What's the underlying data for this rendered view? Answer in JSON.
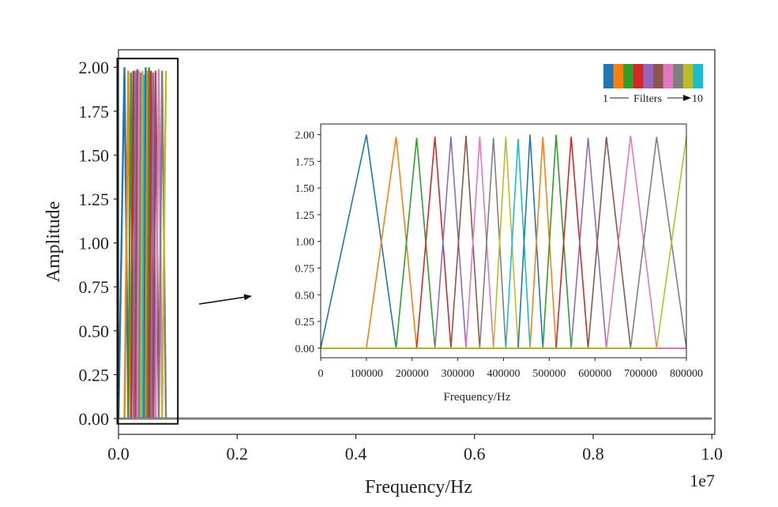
{
  "chart_data": [
    {
      "type": "line",
      "xlabel": "Frequency/Hz",
      "ylabel": "Amplitude",
      "x_offset_label": "1e7",
      "xlim": [
        -5e-05,
        1.005
      ],
      "ylim": [
        -0.09,
        2.1
      ],
      "xticks": [
        0.0,
        0.2,
        0.4,
        0.6,
        0.8,
        1.0
      ],
      "xtick_labels": [
        "0.0",
        "0.2",
        "0.4",
        "0.6",
        "0.8",
        "1.0"
      ],
      "yticks": [
        0.0,
        0.25,
        0.5,
        0.75,
        1.0,
        1.25,
        1.5,
        1.75,
        2.0
      ],
      "ytick_labels": [
        "0.00",
        "0.25",
        "0.50",
        "0.75",
        "1.00",
        "1.25",
        "1.50",
        "1.75",
        "2.00"
      ],
      "grid": false,
      "baseline": {
        "x": [
          0.0,
          1.0
        ],
        "y": [
          0.0,
          0.0
        ],
        "color": "#7f7f7f"
      },
      "filters_x": [
        0.0,
        0.01,
        0.0165,
        0.021,
        0.025,
        0.0285,
        0.0318,
        0.0348,
        0.0378,
        0.0405,
        0.0432,
        0.0458,
        0.0486,
        0.0515,
        0.0548,
        0.0585,
        0.0625,
        0.0678,
        0.0735,
        0.08
      ],
      "filters_peak": [
        2.0,
        1.98,
        1.97,
        1.98,
        1.98,
        1.99,
        1.98,
        1.97,
        1.98,
        1.96,
        2.0,
        1.98,
        2.0,
        1.98,
        1.97,
        1.98,
        1.99,
        1.98,
        1.98
      ],
      "zoom_box": {
        "x": [
          -0.002,
          0.1
        ],
        "y": [
          -0.03,
          2.05
        ]
      },
      "legend_colorbar": {
        "colors": [
          "#1f77b4",
          "#ff7f0e",
          "#2ca02c",
          "#d62728",
          "#9467bd",
          "#8c564b",
          "#e377c2",
          "#7f7f7f",
          "#bcbd22",
          "#17becf"
        ],
        "label_start": "1",
        "label_text": "Filters",
        "label_end": "10",
        "placement": "top-right"
      }
    },
    {
      "type": "line",
      "xlabel": "Frequency/Hz",
      "ylabel": "",
      "xlim": [
        0,
        800000
      ],
      "ylim": [
        -0.09,
        2.1
      ],
      "xticks": [
        0,
        100000,
        200000,
        300000,
        400000,
        500000,
        600000,
        700000,
        800000
      ],
      "xtick_labels": [
        "0",
        "100000",
        "200000",
        "300000",
        "400000",
        "500000",
        "600000",
        "700000",
        "800000"
      ],
      "yticks": [
        0.0,
        0.25,
        0.5,
        0.75,
        1.0,
        1.25,
        1.5,
        1.75,
        2.0
      ],
      "ytick_labels": [
        "0.00",
        "0.25",
        "0.50",
        "0.75",
        "1.00",
        "1.25",
        "1.50",
        "1.75",
        "2.00"
      ],
      "grid": false,
      "placement": "inset",
      "filters_x": [
        0,
        100000,
        165000,
        210000,
        250000,
        285000,
        318000,
        348000,
        378000,
        405000,
        432000,
        458000,
        486000,
        515000,
        548000,
        585000,
        625000,
        678000,
        735000,
        800000
      ],
      "filters_peak": [
        2.0,
        1.98,
        1.97,
        1.98,
        1.98,
        1.99,
        1.98,
        1.97,
        1.98,
        1.96,
        2.0,
        1.98,
        2.0,
        1.98,
        1.97,
        1.98,
        1.99,
        1.98,
        1.98
      ],
      "colors": [
        "#1f77b4",
        "#ff7f0e",
        "#2ca02c",
        "#d62728",
        "#9467bd",
        "#8c564b",
        "#e377c2",
        "#7f7f7f",
        "#bcbd22",
        "#17becf"
      ]
    }
  ]
}
